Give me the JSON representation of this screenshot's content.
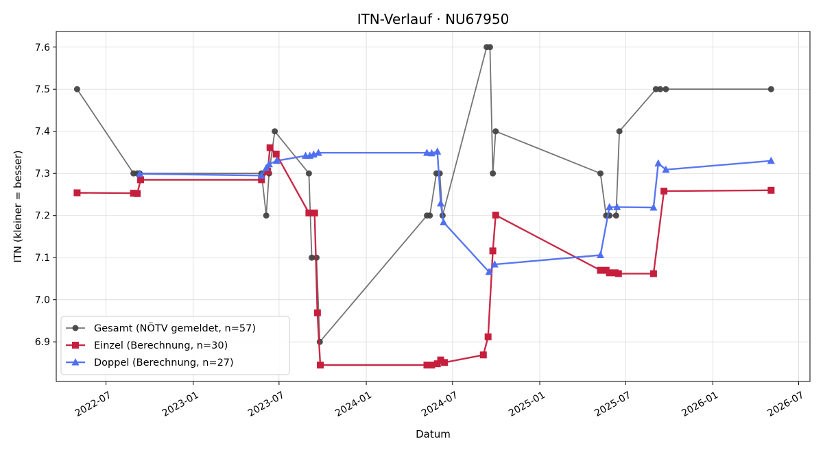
{
  "chart_data": {
    "type": "line",
    "title": "ITN-Verlauf · NU67950",
    "xlabel": "Datum",
    "ylabel": "ITN  (kleiner = besser)",
    "x_ticks": [
      "2022-07",
      "2023-01",
      "2023-07",
      "2024-01",
      "2024-07",
      "2025-01",
      "2025-07",
      "2026-01",
      "2026-07"
    ],
    "y_ticks": [
      "6.9",
      "7.0",
      "7.1",
      "7.2",
      "7.3",
      "7.4",
      "7.5",
      "7.6"
    ],
    "xlim": [
      "2022-03-18",
      "2026-07-25"
    ],
    "ylim": [
      6.806,
      7.637
    ],
    "grid": true,
    "legend_position": "lower-left",
    "series": [
      {
        "name": "Gesamt (NÖTV gemeldet, n=57)",
        "color": "#444444",
        "marker": "circle",
        "points": [
          [
            "2022-05-01",
            7.5
          ],
          [
            "2022-08-28",
            7.3
          ],
          [
            "2022-09-05",
            7.3
          ],
          [
            "2022-09-10",
            7.3
          ],
          [
            "2023-05-25",
            7.3
          ],
          [
            "2023-06-04",
            7.2
          ],
          [
            "2023-06-10",
            7.3
          ],
          [
            "2023-06-22",
            7.4
          ],
          [
            "2023-09-02",
            7.3
          ],
          [
            "2023-09-08",
            7.1
          ],
          [
            "2023-09-18",
            7.1
          ],
          [
            "2023-09-25",
            6.9
          ],
          [
            "2024-05-08",
            7.2
          ],
          [
            "2024-05-14",
            7.2
          ],
          [
            "2024-05-28",
            7.3
          ],
          [
            "2024-06-04",
            7.3
          ],
          [
            "2024-06-10",
            7.2
          ],
          [
            "2024-09-11",
            7.6
          ],
          [
            "2024-09-18",
            7.6
          ],
          [
            "2024-09-24",
            7.3
          ],
          [
            "2024-09-30",
            7.4
          ],
          [
            "2025-05-09",
            7.3
          ],
          [
            "2025-05-21",
            7.2
          ],
          [
            "2025-05-28",
            7.2
          ],
          [
            "2025-06-11",
            7.2
          ],
          [
            "2025-06-18",
            7.4
          ],
          [
            "2025-09-03",
            7.5
          ],
          [
            "2025-09-12",
            7.5
          ],
          [
            "2025-09-24",
            7.5
          ],
          [
            "2026-05-04",
            7.5
          ]
        ]
      },
      {
        "name": "Einzel (Berechnung, n=30)",
        "color": "#c51f3d",
        "marker": "square",
        "points": [
          [
            "2022-05-01",
            7.254
          ],
          [
            "2022-08-28",
            7.253
          ],
          [
            "2022-09-05",
            7.252
          ],
          [
            "2022-09-12",
            7.285
          ],
          [
            "2023-05-25",
            7.285
          ],
          [
            "2023-06-07",
            7.305
          ],
          [
            "2023-06-12",
            7.361
          ],
          [
            "2023-06-25",
            7.346
          ],
          [
            "2023-09-02",
            7.206
          ],
          [
            "2023-09-14",
            7.206
          ],
          [
            "2023-09-20",
            6.969
          ],
          [
            "2023-09-26",
            6.845
          ],
          [
            "2024-05-08",
            6.845
          ],
          [
            "2024-05-18",
            6.845
          ],
          [
            "2024-05-30",
            6.848
          ],
          [
            "2024-06-06",
            6.857
          ],
          [
            "2024-06-14",
            6.851
          ],
          [
            "2024-09-04",
            6.869
          ],
          [
            "2024-09-14",
            6.912
          ],
          [
            "2024-09-24",
            7.116
          ],
          [
            "2024-09-30",
            7.201
          ],
          [
            "2025-05-09",
            7.07
          ],
          [
            "2025-05-21",
            7.07
          ],
          [
            "2025-05-28",
            7.064
          ],
          [
            "2025-06-09",
            7.064
          ],
          [
            "2025-06-16",
            7.062
          ],
          [
            "2025-08-29",
            7.062
          ],
          [
            "2025-09-20",
            7.258
          ],
          [
            "2026-05-04",
            7.26
          ]
        ]
      },
      {
        "name": "Doppel (Berechnung, n=27)",
        "color": "#4f6ff0",
        "marker": "triangle",
        "points": [
          [
            "2022-09-10",
            7.299
          ],
          [
            "2023-05-25",
            7.295
          ],
          [
            "2023-06-04",
            7.313
          ],
          [
            "2023-06-10",
            7.322
          ],
          [
            "2023-06-26",
            7.33
          ],
          [
            "2023-08-26",
            7.342
          ],
          [
            "2023-09-04",
            7.342
          ],
          [
            "2023-09-12",
            7.345
          ],
          [
            "2023-09-22",
            7.349
          ],
          [
            "2024-05-08",
            7.349
          ],
          [
            "2024-05-18",
            7.348
          ],
          [
            "2024-05-30",
            7.352
          ],
          [
            "2024-06-06",
            7.229
          ],
          [
            "2024-06-12",
            7.184
          ],
          [
            "2024-09-16",
            7.066
          ],
          [
            "2024-09-28",
            7.084
          ],
          [
            "2025-05-09",
            7.106
          ],
          [
            "2025-05-28",
            7.22
          ],
          [
            "2025-06-13",
            7.22
          ],
          [
            "2025-08-29",
            7.219
          ],
          [
            "2025-09-08",
            7.324
          ],
          [
            "2025-09-24",
            7.309
          ],
          [
            "2026-05-04",
            7.33
          ]
        ]
      }
    ]
  }
}
